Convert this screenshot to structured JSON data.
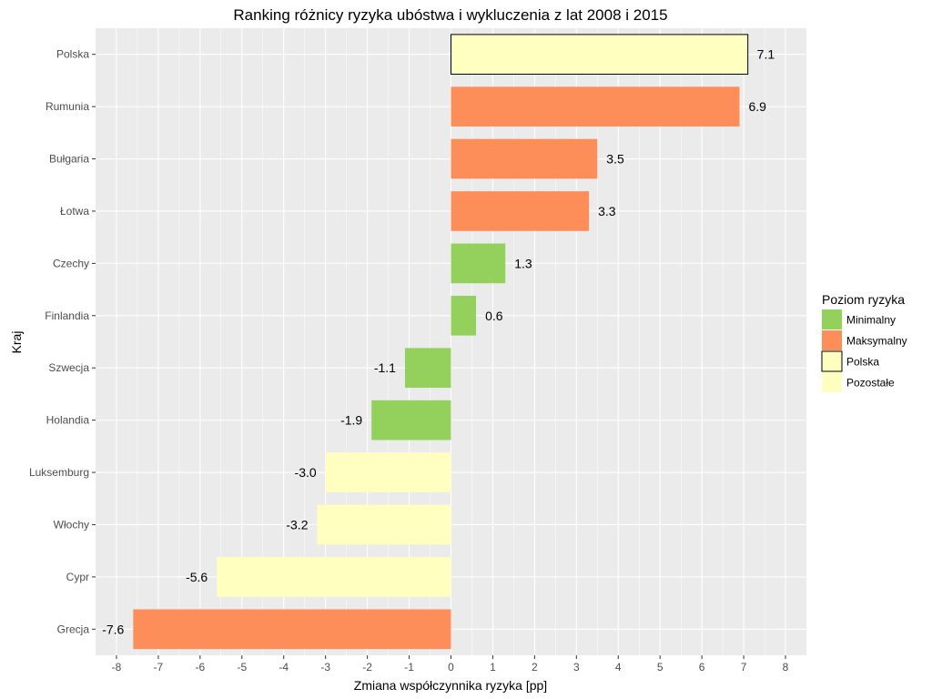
{
  "chart_data": {
    "type": "bar",
    "orientation": "horizontal",
    "title": "Ranking różnicy ryzyka ubóstwa i wykluczenia z lat 2008 i 2015",
    "xlabel": "Zmiana współczynnika ryzyka [pp]",
    "ylabel": "Kraj",
    "xlim": [
      -8.5,
      8.5
    ],
    "x_ticks": [
      -8,
      -7,
      -6,
      -5,
      -4,
      -3,
      -2,
      -1,
      0,
      1,
      2,
      3,
      4,
      5,
      6,
      7,
      8
    ],
    "grid": true,
    "categories": [
      "Polska",
      "Rumunia",
      "Bułgaria",
      "Łotwa",
      "Czechy",
      "Finlandia",
      "Szwecja",
      "Holandia",
      "Luksemburg",
      "Włochy",
      "Cypr",
      "Grecja"
    ],
    "values": [
      7.1,
      6.9,
      3.5,
      3.3,
      1.3,
      0.6,
      -1.1,
      -1.9,
      -3.0,
      -3.2,
      -5.6,
      -7.6
    ],
    "value_labels": [
      "7.1",
      "6.9",
      "3.5",
      "3.3",
      "1.3",
      "0.6",
      "-1.1",
      "-1.9",
      "-3.0",
      "-3.2",
      "-5.6",
      "-7.6"
    ],
    "groups": [
      "Polska",
      "Maksymalny",
      "Maksymalny",
      "Maksymalny",
      "Minimalny",
      "Minimalny",
      "Minimalny",
      "Minimalny",
      "Pozostałe",
      "Pozostałe",
      "Pozostałe",
      "Maksymalny"
    ],
    "legend": {
      "title": "Poziom ryzyka",
      "placement": "right",
      "entries": [
        {
          "label": "Minimalny",
          "color": "#94d05c",
          "outlined": false
        },
        {
          "label": "Maksymalny",
          "color": "#fd8d59",
          "outlined": false
        },
        {
          "label": "Polska",
          "color": "#ffffc0",
          "outlined": true
        },
        {
          "label": "Pozostałe",
          "color": "#ffffc0",
          "outlined": false
        }
      ]
    },
    "colors": {
      "Minimalny": "#94d05c",
      "Maksymalny": "#fd8d59",
      "Polska": "#ffffc0",
      "Pozostałe": "#ffffc0",
      "panel_background": "#ebebeb",
      "grid_line": "#ffffff"
    }
  }
}
